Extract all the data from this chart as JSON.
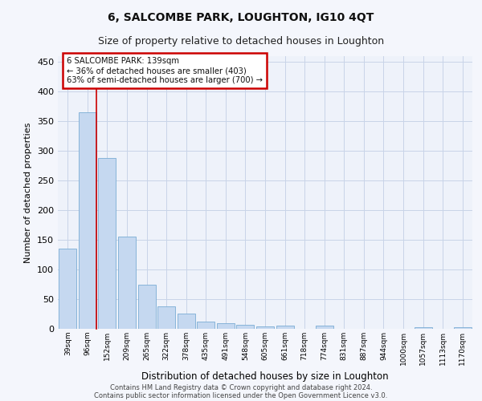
{
  "title": "6, SALCOMBE PARK, LOUGHTON, IG10 4QT",
  "subtitle": "Size of property relative to detached houses in Loughton",
  "xlabel": "Distribution of detached houses by size in Loughton",
  "ylabel": "Number of detached properties",
  "categories": [
    "39sqm",
    "96sqm",
    "152sqm",
    "209sqm",
    "265sqm",
    "322sqm",
    "378sqm",
    "435sqm",
    "491sqm",
    "548sqm",
    "605sqm",
    "661sqm",
    "718sqm",
    "774sqm",
    "831sqm",
    "887sqm",
    "944sqm",
    "1000sqm",
    "1057sqm",
    "1113sqm",
    "1170sqm"
  ],
  "values": [
    135,
    365,
    288,
    155,
    75,
    38,
    26,
    12,
    9,
    7,
    4,
    5,
    0,
    5,
    0,
    0,
    0,
    0,
    3,
    0,
    3
  ],
  "bar_color": "#c5d8f0",
  "bar_edgecolor": "#7aadd4",
  "redline_bar_index": 1,
  "annotation_text_line1": "6 SALCOMBE PARK: 139sqm",
  "annotation_text_line2": "← 36% of detached houses are smaller (403)",
  "annotation_text_line3": "63% of semi-detached houses are larger (700) →",
  "annotation_box_color": "#ffffff",
  "annotation_box_edgecolor": "#cc0000",
  "ylim": [
    0,
    460
  ],
  "yticks": [
    0,
    50,
    100,
    150,
    200,
    250,
    300,
    350,
    400,
    450
  ],
  "grid_color": "#c8d4e8",
  "background_color": "#eef2fa",
  "fig_background": "#f4f6fc",
  "title_fontsize": 10,
  "subtitle_fontsize": 9,
  "footer_line1": "Contains HM Land Registry data © Crown copyright and database right 2024.",
  "footer_line2": "Contains public sector information licensed under the Open Government Licence v3.0."
}
